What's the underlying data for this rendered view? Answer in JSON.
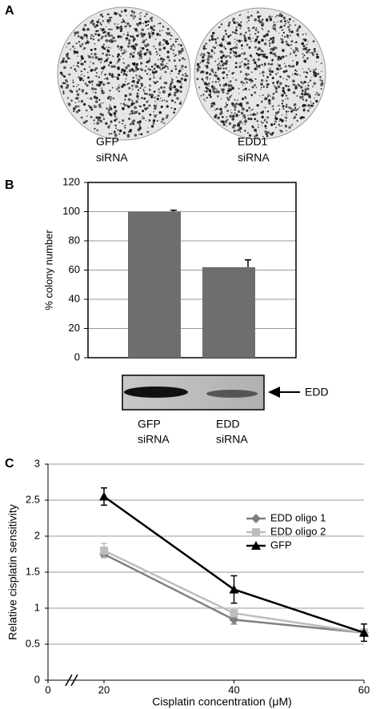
{
  "panel_labels": [
    "A",
    "B",
    "C"
  ],
  "panel_a": {
    "plates": [
      {
        "label": [
          "GFP",
          "siRNA"
        ]
      },
      {
        "label": [
          "EDD1",
          "siRNA"
        ]
      }
    ]
  },
  "chart_data": [
    {
      "type": "bar",
      "y_label": "% colony number",
      "categories": [
        null,
        null
      ],
      "values": [
        100,
        62
      ],
      "errors": [
        1,
        5
      ],
      "color": "#6e6e6e",
      "ylim": [
        0,
        120
      ],
      "yticks": [
        0,
        20,
        40,
        60,
        80,
        100,
        120
      ],
      "grid": true
    },
    {
      "type": "line",
      "y_label": "Relative cisplatin sensitivity",
      "x_label": "Cisplatin concentration (μM)",
      "x": [
        20,
        40,
        60
      ],
      "xlim": [
        0,
        60
      ],
      "xticks": [
        0,
        20,
        40,
        60
      ],
      "x_axis_break": true,
      "ylim": [
        0,
        3
      ],
      "yticks": [
        0,
        0.5,
        1,
        1.5,
        2,
        2.5,
        3
      ],
      "grid": true,
      "legend": "upper right",
      "series": [
        {
          "name": "EDD oligo 1",
          "color": "#808080",
          "marker": "diamond",
          "values": [
            1.75,
            0.84,
            0.66
          ],
          "errors": [
            0.04,
            0.06,
            0.05
          ]
        },
        {
          "name": "EDD oligo 2",
          "color": "#bdbdbd",
          "marker": "square",
          "values": [
            1.8,
            0.93,
            0.66
          ],
          "errors": [
            0.1,
            0.05,
            0.05
          ]
        },
        {
          "name": "GFP",
          "color": "#000000",
          "marker": "triangle",
          "values": [
            2.55,
            1.26,
            0.66
          ],
          "errors": [
            0.12,
            0.19,
            0.12
          ]
        }
      ]
    }
  ],
  "blot": {
    "band": "EDD",
    "lanes": [
      [
        "GFP",
        "siRNA"
      ],
      [
        "EDD",
        "siRNA"
      ]
    ]
  }
}
